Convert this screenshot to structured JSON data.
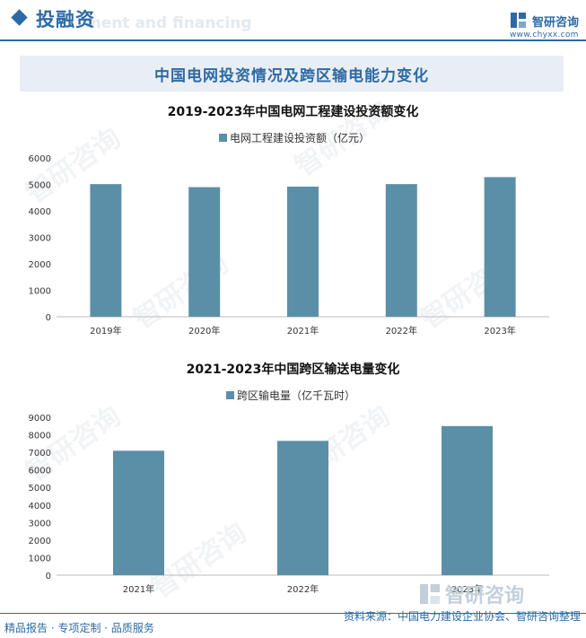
{
  "header": {
    "section_title": "投融资",
    "watermark_text": "ment and financing",
    "brand_name": "智研咨询",
    "brand_url": "www.chyxx.com"
  },
  "banner": {
    "title": "中国电网投资情况及跨区输电能力变化"
  },
  "colors": {
    "bar": "#5b8fa8",
    "accent": "#2d6aa5"
  },
  "chart_data": [
    {
      "type": "bar",
      "title": "2019-2023年中国电网工程建设投资额变化",
      "categories": [
        "2019年",
        "2020年",
        "2021年",
        "2022年",
        "2023年"
      ],
      "series": [
        {
          "name": "电网工程建设投资额（亿元）",
          "values": [
            5012,
            4896,
            4916,
            5012,
            5275
          ]
        }
      ],
      "ylim": [
        0,
        6000
      ],
      "yticks": [
        0,
        1000,
        2000,
        3000,
        4000,
        5000,
        6000
      ],
      "grid": false,
      "legend": "top-center"
    },
    {
      "type": "bar",
      "title": "2021-2023年中国跨区输送电量变化",
      "categories": [
        "2021年",
        "2022年",
        "2023年"
      ],
      "series": [
        {
          "name": "跨区输电量（亿千瓦时）",
          "values": [
            7091,
            7654,
            8497
          ]
        }
      ],
      "ylim": [
        0,
        9000
      ],
      "yticks": [
        0,
        1000,
        2000,
        3000,
        4000,
        5000,
        6000,
        7000,
        8000,
        9000
      ],
      "grid": false,
      "legend": "top-center"
    }
  ],
  "watermark": {
    "text": "智研咨询"
  },
  "footer": {
    "left": "精品报告 · 专项定制 · 品质服务",
    "right": "资料来源：中国电力建设企业协会、智研咨询整理",
    "brand": "智研咨询"
  }
}
